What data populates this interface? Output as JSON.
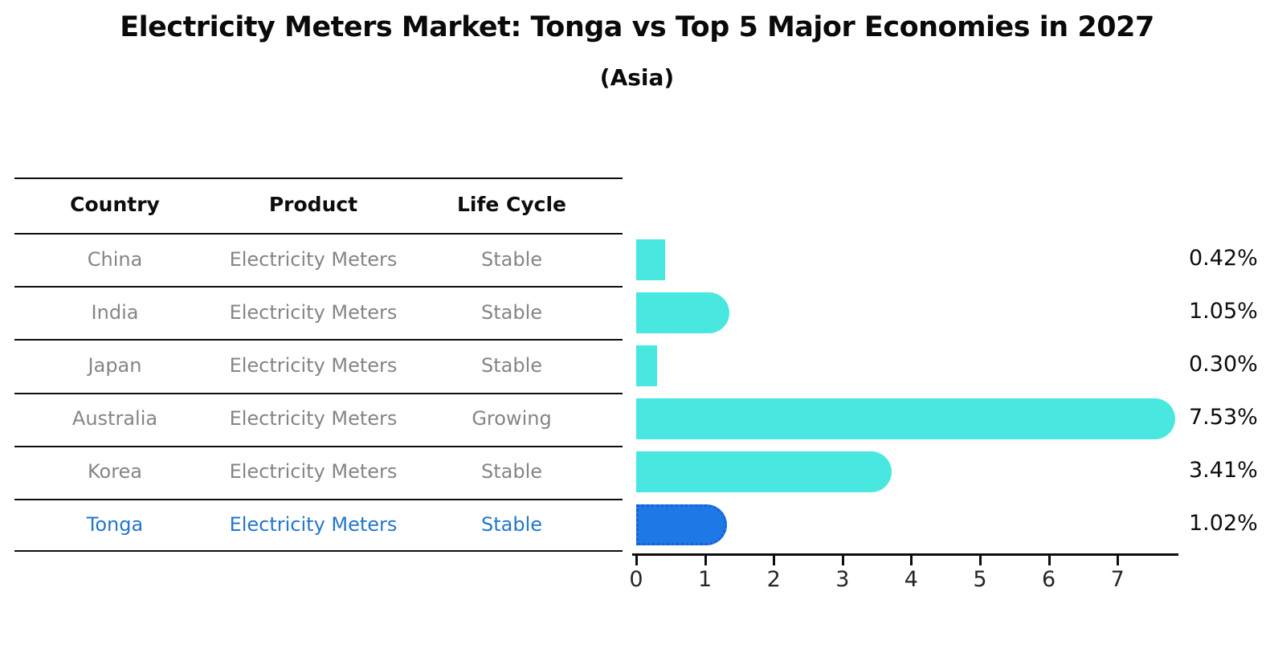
{
  "header": {
    "title": "Electricity Meters Market: Tonga vs Top 5 Major Economies in 2027",
    "subtitle": "(Asia)"
  },
  "table": {
    "headers": [
      "Country",
      "Product",
      "Life Cycle"
    ],
    "rows": [
      {
        "country": "China",
        "product": "Electricity Meters",
        "life_cycle": "Stable",
        "highlighted": false
      },
      {
        "country": "India",
        "product": "Electricity Meters",
        "life_cycle": "Stable",
        "highlighted": false
      },
      {
        "country": "Japan",
        "product": "Electricity Meters",
        "life_cycle": "Stable",
        "highlighted": false
      },
      {
        "country": "Australia",
        "product": "Electricity Meters",
        "life_cycle": "Growing",
        "highlighted": false
      },
      {
        "country": "Korea",
        "product": "Electricity Meters",
        "life_cycle": "Stable",
        "highlighted": false
      },
      {
        "country": "Tonga",
        "product": "Electricity Meters",
        "life_cycle": "Stable",
        "highlighted": true
      }
    ]
  },
  "chart_data": {
    "type": "bar",
    "orientation": "horizontal",
    "title": "Electricity Meters Market: Tonga vs Top 5 Major Economies in 2027",
    "subtitle": "(Asia)",
    "categories": [
      "China",
      "India",
      "Japan",
      "Australia",
      "Korea",
      "Tonga"
    ],
    "values": [
      0.42,
      1.05,
      0.3,
      7.53,
      3.41,
      1.02
    ],
    "value_labels": [
      "0.42%",
      "1.05%",
      "0.30%",
      "7.53%",
      "3.41%",
      "1.02%"
    ],
    "x_ticks": [
      0,
      1,
      2,
      3,
      4,
      5,
      6,
      7
    ],
    "xlim": [
      0,
      7.9
    ],
    "xlabel": "",
    "ylabel": "",
    "grid": false,
    "legend": false,
    "bar_color": "#48E8E0",
    "highlight_index": 5,
    "highlight_color": "#1E78E6",
    "highlight_border_color": "#1A5ED2",
    "text_gray": "#858585",
    "highlight_text_color": "#2377CB"
  }
}
